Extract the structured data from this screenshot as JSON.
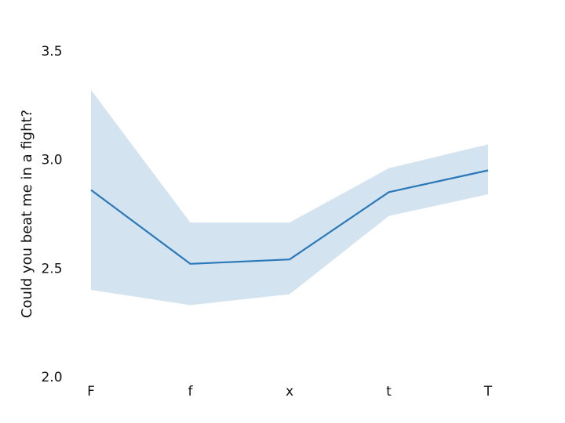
{
  "chart_data": {
    "type": "line",
    "title": "",
    "xlabel": "",
    "ylabel": "Could you beat me in a fight?",
    "categories": [
      "F",
      "f",
      "x",
      "t",
      "T"
    ],
    "series": [
      {
        "values": [
          2.86,
          2.52,
          2.54,
          2.85,
          2.95
        ],
        "lower": [
          2.4,
          2.33,
          2.38,
          2.74,
          2.84
        ],
        "upper": [
          3.32,
          2.71,
          2.71,
          2.96,
          3.07
        ]
      }
    ],
    "ylim": [
      2.0,
      3.5
    ],
    "yticks": [
      "2.0",
      "2.5",
      "3.0",
      "3.5"
    ],
    "grid": false,
    "colors": {
      "line": "#2a78b9",
      "band": "#d3e3ef"
    }
  }
}
